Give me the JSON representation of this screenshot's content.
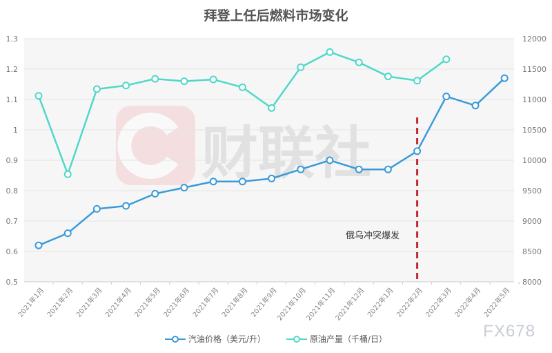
{
  "chart_data": {
    "type": "line",
    "title": "拜登上任后燃料市场变化",
    "categories": [
      "2021年1月",
      "2021年2月",
      "2021年3月",
      "2021年4月",
      "2021年5月",
      "2021年6月",
      "2021年7月",
      "2021年8月",
      "2021年9月",
      "2021年10月",
      "2021年11月",
      "2021年12月",
      "2022年1月",
      "2022年2月",
      "2022年3月",
      "2022年4月",
      "2022年5月"
    ],
    "series": [
      {
        "name": "汽油价格（美元/升）",
        "axis": "left",
        "color": "#3a9ad9",
        "values": [
          0.62,
          0.66,
          0.74,
          0.75,
          0.79,
          0.81,
          0.83,
          0.83,
          0.84,
          0.87,
          0.9,
          0.87,
          0.87,
          0.93,
          1.11,
          1.08,
          1.17
        ]
      },
      {
        "name": "原油产量（千桶/日）",
        "axis": "right",
        "color": "#4fd8c8",
        "values": [
          11060,
          9770,
          11170,
          11230,
          11340,
          11300,
          11330,
          11200,
          10860,
          11530,
          11780,
          11610,
          11380,
          11310,
          11660,
          null,
          null
        ]
      }
    ],
    "yleft": {
      "lim": [
        0.5,
        1.3
      ],
      "ticks": [
        "0.5",
        "0.6",
        "0.7",
        "0.8",
        "0.9",
        "1",
        "1.1",
        "1.2",
        "1.3"
      ]
    },
    "yright": {
      "lim": [
        8000,
        12000
      ],
      "ticks": [
        "8000",
        "8500",
        "9000",
        "9500",
        "10000",
        "10500",
        "11000",
        "11500",
        "12000"
      ]
    },
    "grid": true,
    "legend": "bottom",
    "annotation": {
      "text": "俄乌冲突爆发",
      "at": "2022年2月",
      "color": "#c0282d"
    }
  },
  "watermarks": {
    "brand": "财联社",
    "fx": "FX678"
  }
}
